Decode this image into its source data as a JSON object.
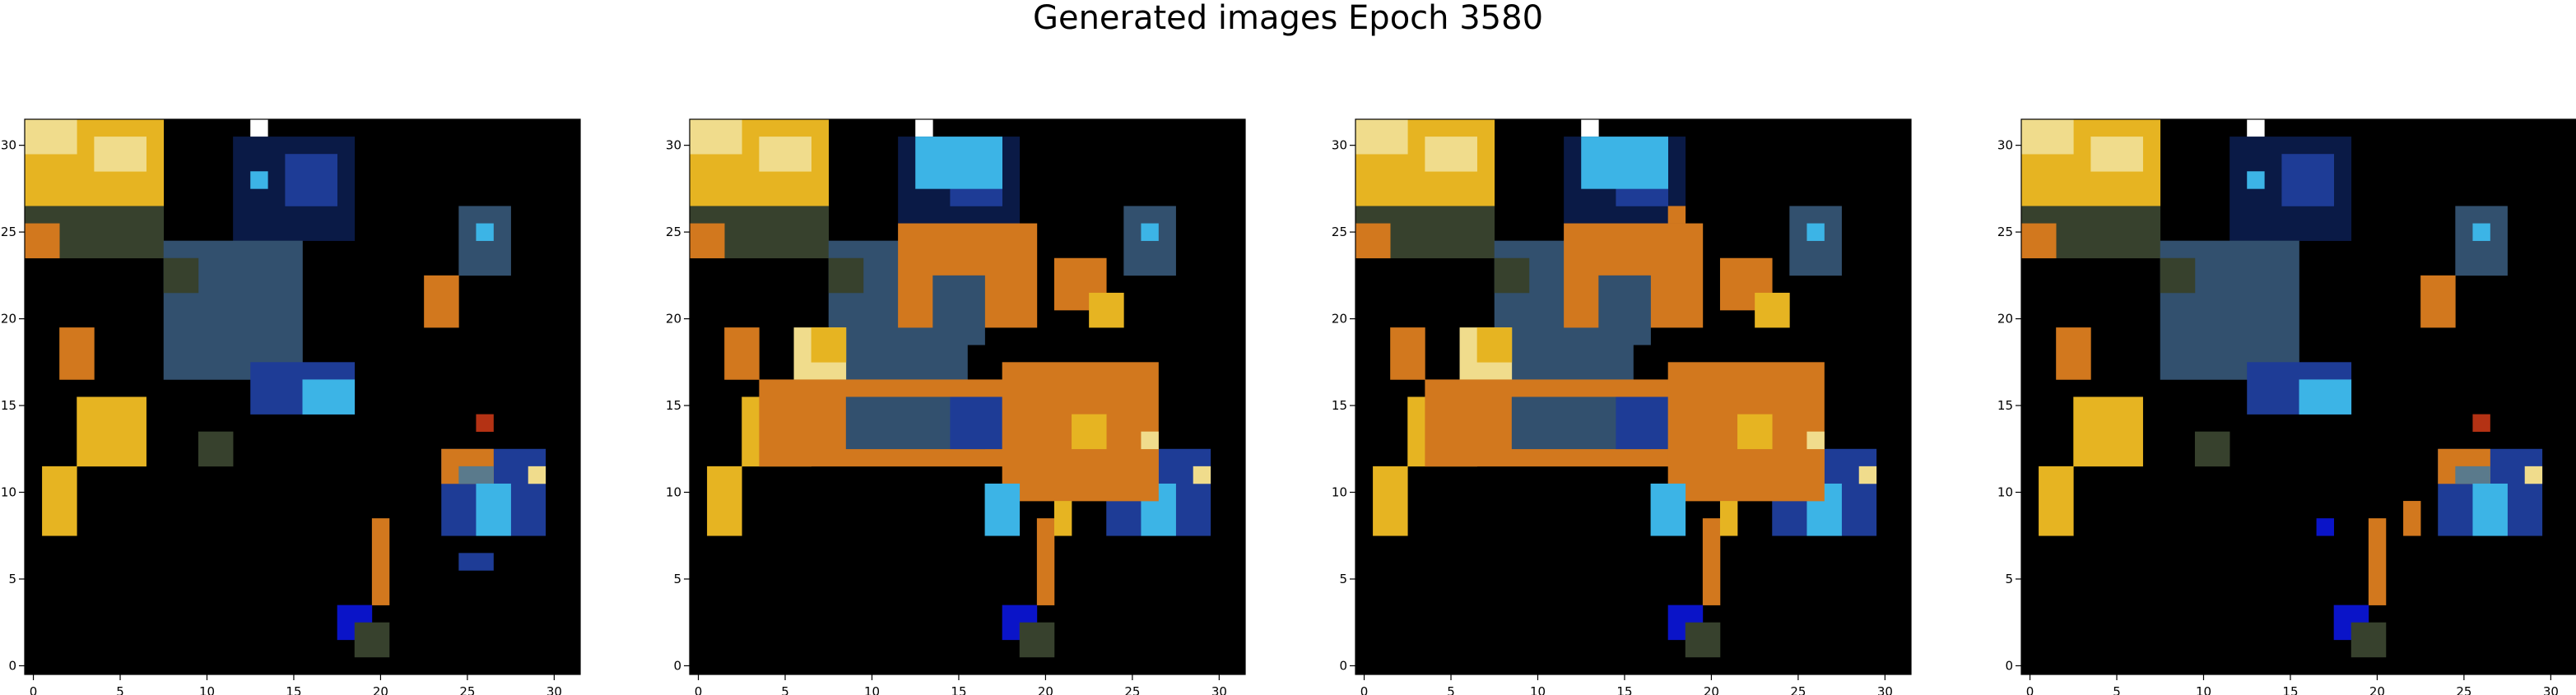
{
  "chart_data": {
    "type": "heatmap",
    "title": "Generated images Epoch 3580",
    "grid": false,
    "legend": "none",
    "panels": [
      {
        "name": "",
        "xlim": [
          -0.5,
          31.5
        ],
        "ylim": [
          31.5,
          -0.5
        ],
        "xticks": [
          0,
          5,
          10,
          15,
          20,
          25,
          30
        ],
        "yticks": [
          0,
          5,
          10,
          15,
          20,
          25,
          30
        ],
        "xtick_labels": [
          "0",
          "5",
          "10",
          "15",
          "20",
          "25",
          "30"
        ],
        "ytick_labels": [
          "0",
          "5",
          "10",
          "15",
          "20",
          "25",
          "30"
        ]
      },
      {
        "name": "",
        "xlim": [
          -0.5,
          31.5
        ],
        "ylim": [
          31.5,
          -0.5
        ],
        "xticks": [
          0,
          5,
          10,
          15,
          20,
          25,
          30
        ],
        "yticks": [
          0,
          5,
          10,
          15,
          20,
          25,
          30
        ],
        "xtick_labels": [
          "0",
          "5",
          "10",
          "15",
          "20",
          "25",
          "30"
        ],
        "ytick_labels": [
          "0",
          "5",
          "10",
          "15",
          "20",
          "25",
          "30"
        ]
      },
      {
        "name": "",
        "xlim": [
          -0.5,
          31.5
        ],
        "ylim": [
          31.5,
          -0.5
        ],
        "xticks": [
          0,
          5,
          10,
          15,
          20,
          25,
          30
        ],
        "yticks": [
          0,
          5,
          10,
          15,
          20,
          25,
          30
        ],
        "xtick_labels": [
          "0",
          "5",
          "10",
          "15",
          "20",
          "25",
          "30"
        ],
        "ytick_labels": [
          "0",
          "5",
          "10",
          "15",
          "20",
          "25",
          "30"
        ]
      },
      {
        "name": "",
        "xlim": [
          -0.5,
          31.5
        ],
        "ylim": [
          31.5,
          -0.5
        ],
        "xticks": [
          0,
          5,
          10,
          15,
          20,
          25,
          30
        ],
        "yticks": [
          0,
          5,
          10,
          15,
          20,
          25,
          30
        ],
        "xtick_labels": [
          "0",
          "5",
          "10",
          "15",
          "20",
          "25",
          "30"
        ],
        "ytick_labels": [
          "0",
          "5",
          "10",
          "15",
          "20",
          "25",
          "30"
        ]
      }
    ],
    "palette": {
      "background": "#000000",
      "Y": "#e6b422",
      "L": "#f0dc8c",
      "O": "#d2781e",
      "B": "#1e3c96",
      "C": "#3cb4e6",
      "T": "#32506e",
      "D": "#0a1a46",
      "G": "#37412d",
      "W": "#ffffff",
      "R": "#b43214",
      "S": "#5a7a8c",
      "V": "#0a14c8"
    },
    "shared_blocks": [
      {
        "c": 0,
        "r": 0,
        "w": 8,
        "h": 5,
        "k": "Y"
      },
      {
        "c": 0,
        "r": 0,
        "w": 3,
        "h": 2,
        "k": "L"
      },
      {
        "c": 4,
        "r": 1,
        "w": 3,
        "h": 2,
        "k": "L"
      },
      {
        "c": 0,
        "r": 5,
        "w": 8,
        "h": 3,
        "k": "G"
      },
      {
        "c": 0,
        "r": 6,
        "w": 2,
        "h": 2,
        "k": "O"
      },
      {
        "c": 13,
        "r": 0,
        "w": 1,
        "h": 1,
        "k": "W"
      },
      {
        "c": 12,
        "r": 1,
        "w": 7,
        "h": 6,
        "k": "D"
      },
      {
        "c": 15,
        "r": 2,
        "w": 3,
        "h": 3,
        "k": "B"
      },
      {
        "c": 8,
        "r": 7,
        "w": 8,
        "h": 8,
        "k": "T"
      },
      {
        "c": 8,
        "r": 8,
        "w": 2,
        "h": 2,
        "k": "G"
      },
      {
        "c": 2,
        "r": 12,
        "w": 2,
        "h": 3,
        "k": "O"
      },
      {
        "c": 3,
        "r": 16,
        "w": 4,
        "h": 4,
        "k": "Y"
      },
      {
        "c": 1,
        "r": 20,
        "w": 2,
        "h": 4,
        "k": "Y"
      },
      {
        "c": 24,
        "r": 19,
        "w": 6,
        "h": 5,
        "k": "B"
      },
      {
        "c": 24,
        "r": 19,
        "w": 3,
        "h": 2,
        "k": "O"
      },
      {
        "c": 25,
        "r": 20,
        "w": 2,
        "h": 1,
        "k": "S"
      },
      {
        "c": 29,
        "r": 20,
        "w": 1,
        "h": 1,
        "k": "L"
      },
      {
        "c": 26,
        "r": 21,
        "w": 2,
        "h": 3,
        "k": "C"
      },
      {
        "c": 20,
        "r": 23,
        "w": 1,
        "h": 5,
        "k": "O"
      },
      {
        "c": 18,
        "r": 28,
        "w": 2,
        "h": 2,
        "k": "V"
      },
      {
        "c": 19,
        "r": 29,
        "w": 2,
        "h": 2,
        "k": "G"
      },
      {
        "c": 25,
        "r": 5,
        "w": 3,
        "h": 4,
        "k": "T"
      },
      {
        "c": 26,
        "r": 6,
        "w": 1,
        "h": 1,
        "k": "C"
      }
    ],
    "variant_blocks": [
      [
        {
          "c": 13,
          "r": 3,
          "w": 1,
          "h": 1,
          "k": "C"
        },
        {
          "c": 13,
          "r": 14,
          "w": 6,
          "h": 3,
          "k": "B"
        },
        {
          "c": 16,
          "r": 15,
          "w": 3,
          "h": 2,
          "k": "C"
        },
        {
          "c": 23,
          "r": 9,
          "w": 2,
          "h": 3,
          "k": "O"
        },
        {
          "c": 26,
          "r": 17,
          "w": 1,
          "h": 1,
          "k": "R"
        },
        {
          "c": 10,
          "r": 18,
          "w": 2,
          "h": 2,
          "k": "G"
        },
        {
          "c": 25,
          "r": 25,
          "w": 2,
          "h": 1,
          "k": "B"
        }
      ],
      [
        {
          "c": 13,
          "r": 1,
          "w": 5,
          "h": 3,
          "k": "C"
        },
        {
          "c": 12,
          "r": 6,
          "w": 8,
          "h": 6,
          "k": "O"
        },
        {
          "c": 14,
          "r": 9,
          "w": 3,
          "h": 4,
          "k": "T"
        },
        {
          "c": 21,
          "r": 8,
          "w": 3,
          "h": 3,
          "k": "O"
        },
        {
          "c": 23,
          "r": 10,
          "w": 2,
          "h": 2,
          "k": "Y"
        },
        {
          "c": 6,
          "r": 12,
          "w": 3,
          "h": 3,
          "k": "L"
        },
        {
          "c": 7,
          "r": 12,
          "w": 2,
          "h": 2,
          "k": "Y"
        },
        {
          "c": 4,
          "r": 15,
          "w": 14,
          "h": 5,
          "k": "O"
        },
        {
          "c": 9,
          "r": 16,
          "w": 8,
          "h": 3,
          "k": "T"
        },
        {
          "c": 15,
          "r": 16,
          "w": 3,
          "h": 3,
          "k": "B"
        },
        {
          "c": 18,
          "r": 14,
          "w": 9,
          "h": 8,
          "k": "O"
        },
        {
          "c": 22,
          "r": 17,
          "w": 2,
          "h": 2,
          "k": "Y"
        },
        {
          "c": 26,
          "r": 18,
          "w": 1,
          "h": 1,
          "k": "L"
        },
        {
          "c": 21,
          "r": 22,
          "w": 1,
          "h": 2,
          "k": "Y"
        },
        {
          "c": 17,
          "r": 21,
          "w": 2,
          "h": 3,
          "k": "C"
        }
      ],
      [
        {
          "c": 13,
          "r": 1,
          "w": 5,
          "h": 3,
          "k": "C"
        },
        {
          "c": 18,
          "r": 5,
          "w": 1,
          "h": 1,
          "k": "O"
        },
        {
          "c": 12,
          "r": 6,
          "w": 8,
          "h": 6,
          "k": "O"
        },
        {
          "c": 14,
          "r": 9,
          "w": 3,
          "h": 4,
          "k": "T"
        },
        {
          "c": 21,
          "r": 8,
          "w": 3,
          "h": 3,
          "k": "O"
        },
        {
          "c": 23,
          "r": 10,
          "w": 2,
          "h": 2,
          "k": "Y"
        },
        {
          "c": 6,
          "r": 12,
          "w": 3,
          "h": 3,
          "k": "L"
        },
        {
          "c": 7,
          "r": 12,
          "w": 2,
          "h": 2,
          "k": "Y"
        },
        {
          "c": 4,
          "r": 15,
          "w": 14,
          "h": 5,
          "k": "O"
        },
        {
          "c": 9,
          "r": 16,
          "w": 8,
          "h": 3,
          "k": "T"
        },
        {
          "c": 15,
          "r": 16,
          "w": 3,
          "h": 3,
          "k": "B"
        },
        {
          "c": 18,
          "r": 14,
          "w": 9,
          "h": 8,
          "k": "O"
        },
        {
          "c": 22,
          "r": 17,
          "w": 2,
          "h": 2,
          "k": "Y"
        },
        {
          "c": 26,
          "r": 18,
          "w": 1,
          "h": 1,
          "k": "L"
        },
        {
          "c": 21,
          "r": 22,
          "w": 1,
          "h": 2,
          "k": "Y"
        },
        {
          "c": 17,
          "r": 21,
          "w": 2,
          "h": 3,
          "k": "C"
        }
      ],
      [
        {
          "c": 13,
          "r": 3,
          "w": 1,
          "h": 1,
          "k": "C"
        },
        {
          "c": 13,
          "r": 14,
          "w": 6,
          "h": 3,
          "k": "B"
        },
        {
          "c": 16,
          "r": 15,
          "w": 3,
          "h": 2,
          "k": "C"
        },
        {
          "c": 23,
          "r": 9,
          "w": 2,
          "h": 3,
          "k": "O"
        },
        {
          "c": 26,
          "r": 17,
          "w": 1,
          "h": 1,
          "k": "R"
        },
        {
          "c": 10,
          "r": 18,
          "w": 2,
          "h": 2,
          "k": "G"
        },
        {
          "c": 22,
          "r": 22,
          "w": 1,
          "h": 2,
          "k": "O"
        },
        {
          "c": 17,
          "r": 23,
          "w": 1,
          "h": 1,
          "k": "V"
        }
      ]
    ]
  }
}
